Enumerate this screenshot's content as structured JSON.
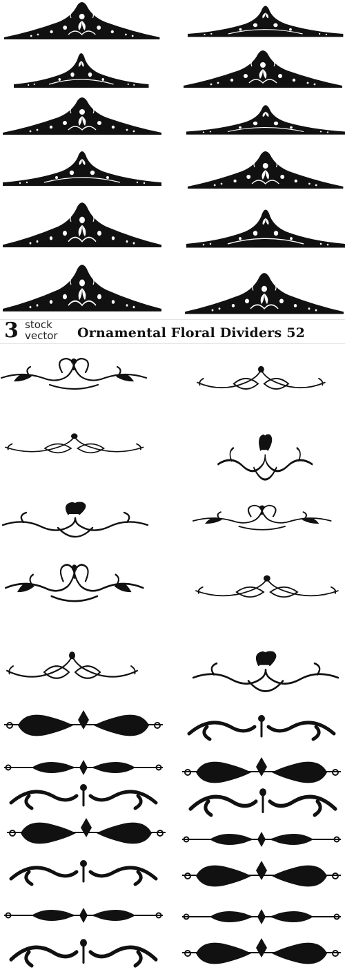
{
  "banner": {
    "logo_number": "3",
    "logo_line1": "stock",
    "logo_line2": "vector",
    "title": "Ornamental Floral Dividers 52"
  },
  "colors": {
    "ink": "#111111",
    "background": "#ffffff",
    "banner_rule": "#e4e4e4"
  }
}
